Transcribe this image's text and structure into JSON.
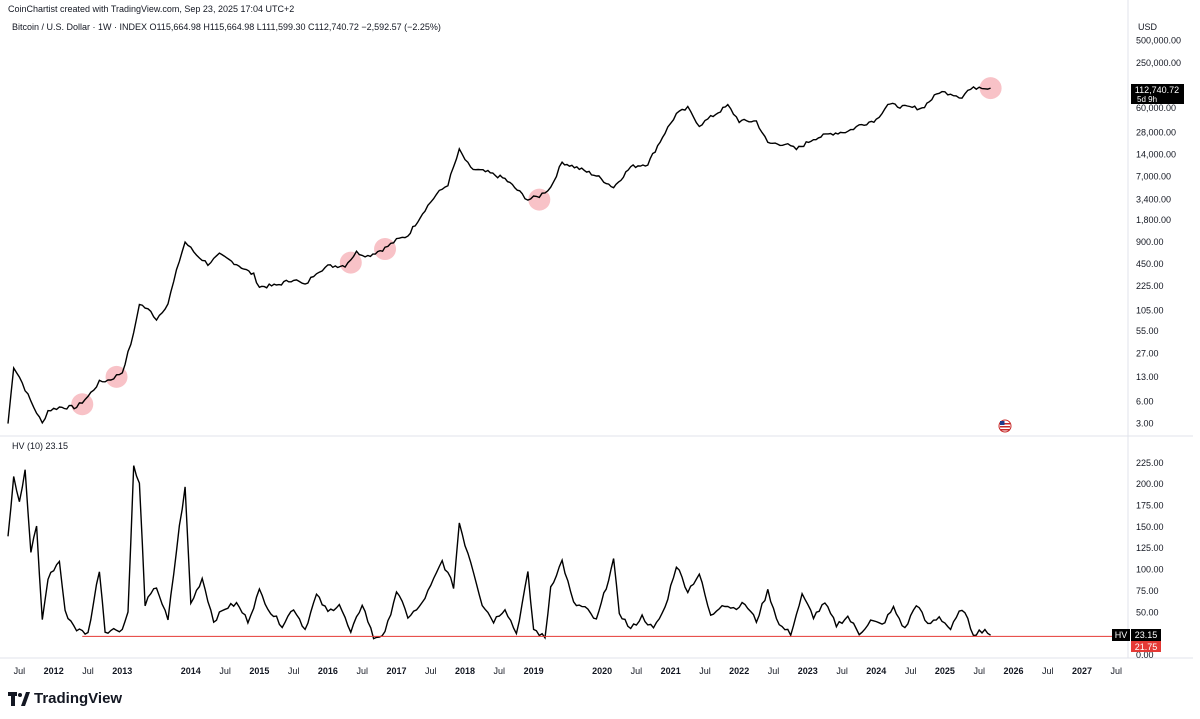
{
  "header": {
    "credit": "CoinChartist created with TradingView.com, Sep 23, 2025 17:04 UTC+2",
    "symbol_line": "Bitcoin / U.S. Dollar · 1W · INDEX  O115,664.98  H115,664.98  L111,599.30  C112,740.72  −2,592.57 (−2.25%)",
    "currency": "USD",
    "hv_line": "HV (10)  23.15"
  },
  "price_scale": {
    "ticks": [
      "500,000.00",
      "250,000.00",
      "60,000.00",
      "28,000.00",
      "14,000.00",
      "7,000.00",
      "3,400.00",
      "1,800.00",
      "900.00",
      "450.00",
      "225.00",
      "105.00",
      "55.00",
      "27.00",
      "13.00",
      "6.00",
      "3.00"
    ],
    "last_price_label": "112,740.72",
    "countdown_label": "5d 9h"
  },
  "hv_scale": {
    "ticks": [
      "225.00",
      "200.00",
      "175.00",
      "150.00",
      "125.00",
      "100.00",
      "75.00",
      "50.00",
      "25.00",
      "0.00"
    ],
    "hv_tag": "HV",
    "hv_value_label": "23.15",
    "line_value_label": "21.75"
  },
  "x_axis": {
    "labels": [
      {
        "text": "Jul",
        "year": false
      },
      {
        "text": "2012",
        "year": true
      },
      {
        "text": "Jul",
        "year": false
      },
      {
        "text": "2013",
        "year": true
      },
      {
        "text": "2014",
        "year": true
      },
      {
        "text": "Jul",
        "year": false
      },
      {
        "text": "2015",
        "year": true
      },
      {
        "text": "Jul",
        "year": false
      },
      {
        "text": "2016",
        "year": true
      },
      {
        "text": "Jul",
        "year": false
      },
      {
        "text": "2017",
        "year": true
      },
      {
        "text": "Jul",
        "year": false
      },
      {
        "text": "2018",
        "year": true
      },
      {
        "text": "Jul",
        "year": false
      },
      {
        "text": "2019",
        "year": true
      },
      {
        "text": "2020",
        "year": true
      },
      {
        "text": "Jul",
        "year": false
      },
      {
        "text": "2021",
        "year": true
      },
      {
        "text": "Jul",
        "year": false
      },
      {
        "text": "2022",
        "year": true
      },
      {
        "text": "Jul",
        "year": false
      },
      {
        "text": "2023",
        "year": true
      },
      {
        "text": "Jul",
        "year": false
      },
      {
        "text": "2024",
        "year": true
      },
      {
        "text": "Jul",
        "year": false
      },
      {
        "text": "2025",
        "year": true
      },
      {
        "text": "Jul",
        "year": false
      },
      {
        "text": "2026",
        "year": true
      },
      {
        "text": "Jul",
        "year": false
      },
      {
        "text": "2027",
        "year": true
      },
      {
        "text": "Jul",
        "year": false
      }
    ]
  },
  "branding": {
    "logo_text": "TradingView"
  },
  "colors": {
    "line": "#000000",
    "highlight": "#f7b7bd",
    "hv_threshold": "#e53935",
    "label_bg": "#000000",
    "threshold_tag": "#e53935"
  },
  "chart_data": [
    {
      "type": "line",
      "title": "Bitcoin / U.S. Dollar · 1W · INDEX",
      "ylabel": "USD",
      "yscale": "log",
      "ylim": [
        2.3,
        700000
      ],
      "xlim": [
        "2011-05",
        "2027-08"
      ],
      "series": [
        {
          "points": [
            [
              "2011-05",
              3.0
            ],
            [
              "2011-06",
              18
            ],
            [
              "2011-07",
              13
            ],
            [
              "2011-09",
              6
            ],
            [
              "2011-11",
              3.0
            ],
            [
              "2011-12",
              4.5
            ],
            [
              "2012-02",
              5.0
            ],
            [
              "2012-05",
              5.0
            ],
            [
              "2012-07",
              7
            ],
            [
              "2012-09",
              11
            ],
            [
              "2012-11",
              12
            ],
            [
              "2013-01",
              15
            ],
            [
              "2013-03",
              50
            ],
            [
              "2013-04",
              130
            ],
            [
              "2013-06",
              100
            ],
            [
              "2013-07",
              80
            ],
            [
              "2013-09",
              130
            ],
            [
              "2013-11",
              500
            ],
            [
              "2013-12",
              900
            ],
            [
              "2014-02",
              600
            ],
            [
              "2014-04",
              450
            ],
            [
              "2014-06",
              600
            ],
            [
              "2014-09",
              450
            ],
            [
              "2014-12",
              320
            ],
            [
              "2015-01",
              220
            ],
            [
              "2015-04",
              230
            ],
            [
              "2015-07",
              280
            ],
            [
              "2015-09",
              230
            ],
            [
              "2015-11",
              350
            ],
            [
              "2016-01",
              420
            ],
            [
              "2016-04",
              430
            ],
            [
              "2016-06",
              650
            ],
            [
              "2016-08",
              580
            ],
            [
              "2016-11",
              740
            ],
            [
              "2017-01",
              950
            ],
            [
              "2017-03",
              1100
            ],
            [
              "2017-06",
              2500
            ],
            [
              "2017-08",
              4000
            ],
            [
              "2017-10",
              5500
            ],
            [
              "2017-12",
              16000
            ],
            [
              "2018-02",
              9000
            ],
            [
              "2018-05",
              8000
            ],
            [
              "2018-08",
              6500
            ],
            [
              "2018-11",
              4000
            ],
            [
              "2018-12",
              3400
            ],
            [
              "2019-02",
              3800
            ],
            [
              "2019-04",
              5000
            ],
            [
              "2019-06",
              11000
            ],
            [
              "2019-09",
              9000
            ],
            [
              "2019-12",
              7200
            ],
            [
              "2020-03",
              5000
            ],
            [
              "2020-06",
              9500
            ],
            [
              "2020-09",
              10500
            ],
            [
              "2020-12",
              28000
            ],
            [
              "2021-02",
              50000
            ],
            [
              "2021-04",
              60000
            ],
            [
              "2021-06",
              35000
            ],
            [
              "2021-08",
              45000
            ],
            [
              "2021-11",
              65000
            ],
            [
              "2022-01",
              40000
            ],
            [
              "2022-04",
              40000
            ],
            [
              "2022-06",
              20000
            ],
            [
              "2022-09",
              19500
            ],
            [
              "2022-11",
              16500
            ],
            [
              "2023-02",
              23000
            ],
            [
              "2023-05",
              27000
            ],
            [
              "2023-08",
              29000
            ],
            [
              "2023-10",
              35000
            ],
            [
              "2024-01",
              42000
            ],
            [
              "2024-03",
              68000
            ],
            [
              "2024-06",
              62000
            ],
            [
              "2024-09",
              60000
            ],
            [
              "2024-12",
              100000
            ],
            [
              "2025-02",
              96000
            ],
            [
              "2025-04",
              85000
            ],
            [
              "2025-05",
              105000
            ],
            [
              "2025-07",
              118000
            ],
            [
              "2025-09",
              112740.72
            ]
          ]
        }
      ]
    },
    {
      "type": "line",
      "title": "HV (10)",
      "ylim": [
        0,
        240
      ],
      "threshold": 21.75,
      "series": [
        {
          "name": "HV",
          "points": [
            [
              "2011-05",
              140
            ],
            [
              "2011-06",
              210
            ],
            [
              "2011-07",
              180
            ],
            [
              "2011-08",
              215
            ],
            [
              "2011-09",
              120
            ],
            [
              "2011-10",
              150
            ],
            [
              "2011-11",
              40
            ],
            [
              "2011-12",
              90
            ],
            [
              "2012-02",
              110
            ],
            [
              "2012-03",
              50
            ],
            [
              "2012-05",
              30
            ],
            [
              "2012-07",
              25
            ],
            [
              "2012-09",
              100
            ],
            [
              "2012-10",
              28
            ],
            [
              "2012-12",
              30
            ],
            [
              "2013-01",
              30
            ],
            [
              "2013-02",
              50
            ],
            [
              "2013-03",
              220
            ],
            [
              "2013-04",
              200
            ],
            [
              "2013-05",
              60
            ],
            [
              "2013-07",
              80
            ],
            [
              "2013-09",
              40
            ],
            [
              "2013-11",
              150
            ],
            [
              "2013-12",
              195
            ],
            [
              "2014-01",
              60
            ],
            [
              "2014-03",
              90
            ],
            [
              "2014-05",
              40
            ],
            [
              "2014-07",
              55
            ],
            [
              "2014-09",
              60
            ],
            [
              "2014-11",
              40
            ],
            [
              "2015-01",
              75
            ],
            [
              "2015-03",
              50
            ],
            [
              "2015-05",
              35
            ],
            [
              "2015-07",
              55
            ],
            [
              "2015-09",
              30
            ],
            [
              "2015-11",
              70
            ],
            [
              "2016-01",
              50
            ],
            [
              "2016-03",
              60
            ],
            [
              "2016-05",
              25
            ],
            [
              "2016-07",
              60
            ],
            [
              "2016-09",
              20
            ],
            [
              "2016-11",
              25
            ],
            [
              "2017-01",
              75
            ],
            [
              "2017-03",
              45
            ],
            [
              "2017-05",
              55
            ],
            [
              "2017-07",
              80
            ],
            [
              "2017-09",
              110
            ],
            [
              "2017-11",
              80
            ],
            [
              "2017-12",
              155
            ],
            [
              "2018-01",
              130
            ],
            [
              "2018-02",
              110
            ],
            [
              "2018-04",
              60
            ],
            [
              "2018-06",
              40
            ],
            [
              "2018-08",
              55
            ],
            [
              "2018-10",
              25
            ],
            [
              "2018-12",
              95
            ],
            [
              "2019-01",
              30
            ],
            [
              "2019-03",
              20
            ],
            [
              "2019-04",
              80
            ],
            [
              "2019-06",
              110
            ],
            [
              "2019-08",
              60
            ],
            [
              "2019-10",
              55
            ],
            [
              "2019-12",
              40
            ],
            [
              "2020-03",
              110
            ],
            [
              "2020-04",
              50
            ],
            [
              "2020-06",
              30
            ],
            [
              "2020-08",
              45
            ],
            [
              "2020-10",
              30
            ],
            [
              "2020-12",
              55
            ],
            [
              "2021-02",
              105
            ],
            [
              "2021-04",
              75
            ],
            [
              "2021-06",
              95
            ],
            [
              "2021-08",
              45
            ],
            [
              "2021-10",
              60
            ],
            [
              "2021-12",
              55
            ],
            [
              "2022-02",
              60
            ],
            [
              "2022-04",
              40
            ],
            [
              "2022-06",
              75
            ],
            [
              "2022-08",
              35
            ],
            [
              "2022-10",
              25
            ],
            [
              "2022-12",
              70
            ],
            [
              "2023-02",
              45
            ],
            [
              "2023-04",
              60
            ],
            [
              "2023-06",
              35
            ],
            [
              "2023-08",
              45
            ],
            [
              "2023-10",
              25
            ],
            [
              "2023-12",
              40
            ],
            [
              "2024-02",
              35
            ],
            [
              "2024-04",
              55
            ],
            [
              "2024-06",
              30
            ],
            [
              "2024-08",
              60
            ],
            [
              "2024-10",
              35
            ],
            [
              "2024-12",
              45
            ],
            [
              "2025-02",
              30
            ],
            [
              "2025-04",
              55
            ],
            [
              "2025-06",
              25
            ],
            [
              "2025-08",
              30
            ],
            [
              "2025-09",
              23.15
            ]
          ]
        }
      ]
    }
  ],
  "highlights": [
    {
      "date": "2012-06",
      "price": 5.5
    },
    {
      "date": "2012-12",
      "price": 13
    },
    {
      "date": "2016-05",
      "price": 470
    },
    {
      "date": "2016-11",
      "price": 720
    },
    {
      "date": "2019-02",
      "price": 3400
    },
    {
      "date": "2025-09",
      "price": 112740.72
    }
  ]
}
